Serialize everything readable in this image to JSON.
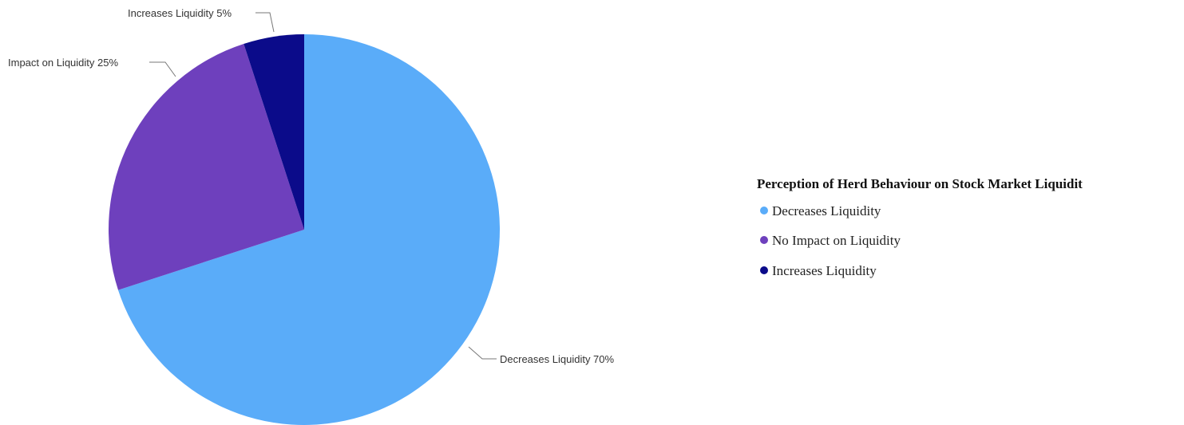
{
  "chart_data": {
    "type": "pie",
    "categories": [
      "Decreases Liquidity",
      "No Impact on Liquidity",
      "Increases Liquidity"
    ],
    "values": [
      70,
      25,
      5
    ],
    "unit": "%",
    "colors": [
      "#5aacf9",
      "#6e40bd",
      "#0b0b8a"
    ],
    "slice_labels": [
      "Decreases Liquidity 70%",
      "Impact on Liquidity 25%",
      "Increases Liquidity 5%"
    ],
    "legend": {
      "title": "Perception of Herd Behaviour on Stock Market Liquidit",
      "placement": "right",
      "entries": [
        "Decreases Liquidity",
        "No Impact on Liquidity",
        "Increases Liquidity"
      ]
    }
  }
}
